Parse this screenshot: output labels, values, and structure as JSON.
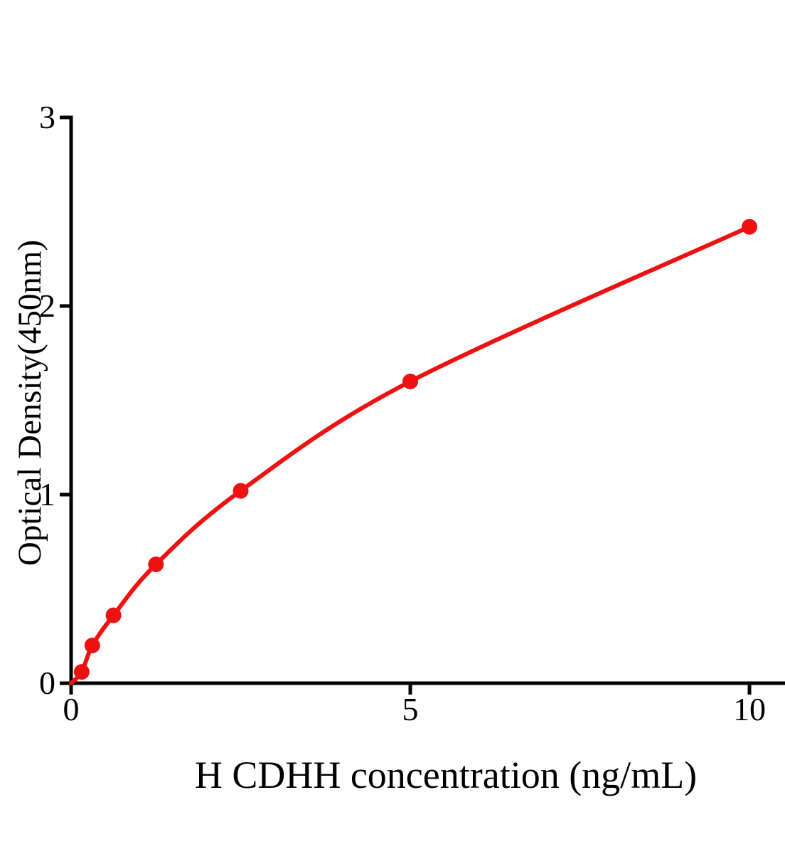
{
  "chart_data": {
    "type": "scatter",
    "title": "",
    "xlabel": "H CDHH concentration (ng/mL)",
    "ylabel": "Optical Density(450nm)",
    "x": [
      0.156,
      0.3125,
      0.625,
      1.25,
      2.5,
      5,
      10
    ],
    "y": [
      0.06,
      0.2,
      0.36,
      0.63,
      1.02,
      1.6,
      2.42
    ],
    "curve_start": [
      0,
      0
    ],
    "curve_through_points": true,
    "x_ticks": [
      0,
      5,
      10
    ],
    "y_ticks": [
      0,
      1,
      2,
      3
    ],
    "xlim": [
      0,
      10.55
    ],
    "ylim": [
      0,
      3
    ],
    "grid": false,
    "legend": "none",
    "series_color": "#ee1111",
    "axis_color": "#000000"
  }
}
